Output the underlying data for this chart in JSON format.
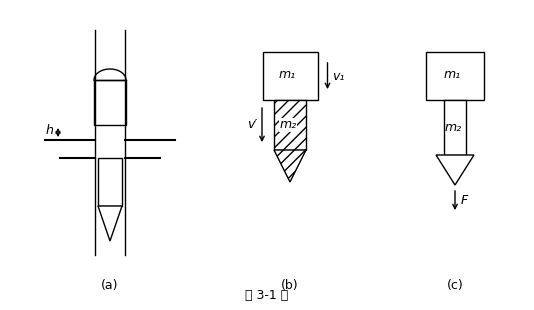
{
  "bg_color": "#ffffff",
  "line_color": "#000000",
  "title": "题 3-1 图",
  "label_a": "(a)",
  "label_b": "(b)",
  "label_c": "(c)",
  "m1_label": "m₁",
  "m2_label": "m₂",
  "v1_label": "v₁",
  "vp_label": "v′",
  "F_label": "F"
}
